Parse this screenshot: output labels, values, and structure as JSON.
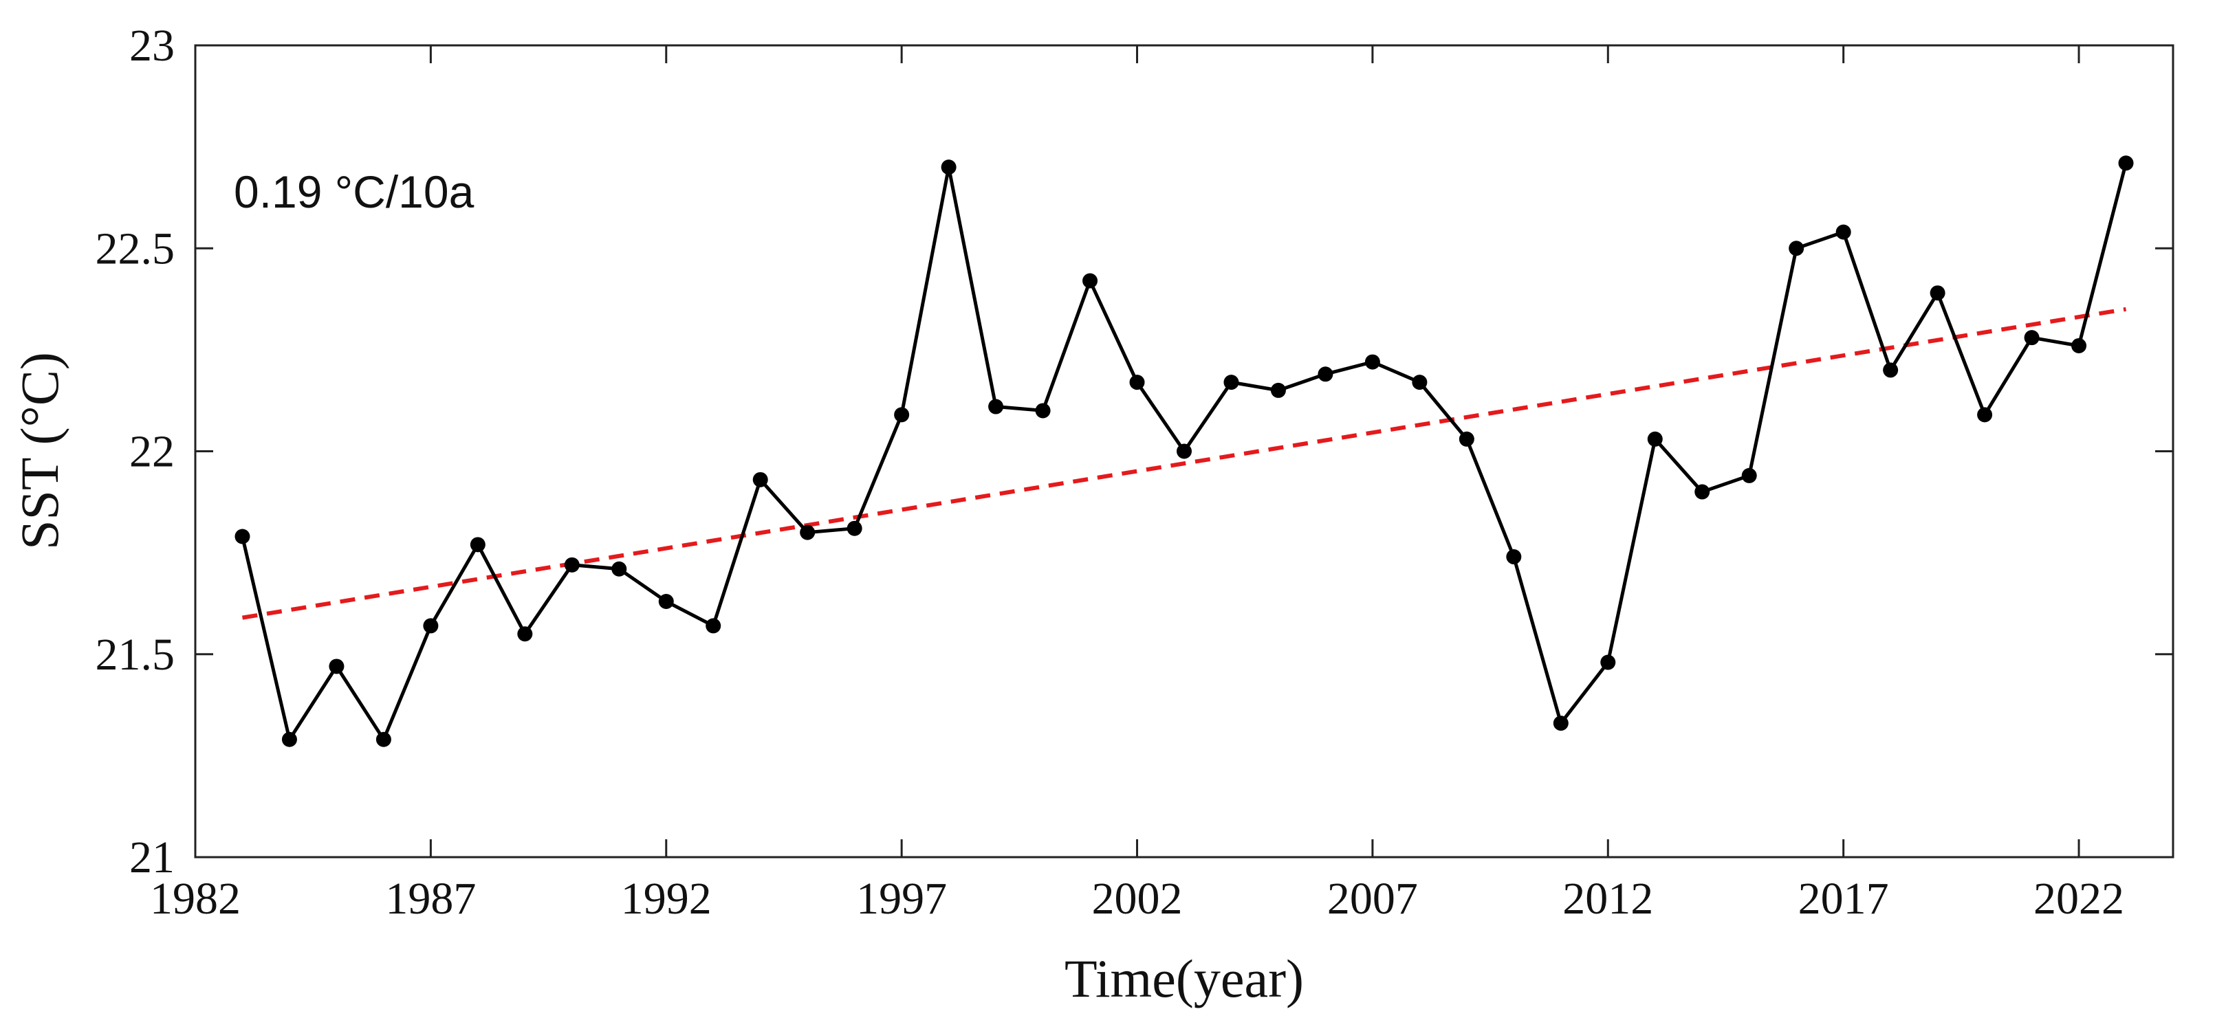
{
  "chart_data": {
    "type": "line",
    "xlabel": "Time(year)",
    "ylabel": "SST (°C)",
    "xlim": [
      1982,
      2024
    ],
    "ylim": [
      21,
      23
    ],
    "xticks": [
      1982,
      1987,
      1992,
      1997,
      2002,
      2007,
      2012,
      2017,
      2022
    ],
    "yticks": [
      21,
      21.5,
      22,
      22.5,
      23
    ],
    "annotation": "0.19 °C/10a",
    "grid": false,
    "series": [
      {
        "style": "solid-line-with-markers",
        "color": "#000000",
        "x": [
          1983,
          1984,
          1985,
          1986,
          1987,
          1988,
          1989,
          1990,
          1991,
          1992,
          1993,
          1994,
          1995,
          1996,
          1997,
          1998,
          1999,
          2000,
          2001,
          2002,
          2003,
          2004,
          2005,
          2006,
          2007,
          2008,
          2009,
          2010,
          2011,
          2012,
          2013,
          2014,
          2015,
          2016,
          2017,
          2018,
          2019,
          2020,
          2021,
          2022,
          2023
        ],
        "y": [
          21.79,
          21.29,
          21.47,
          21.29,
          21.57,
          21.77,
          21.55,
          21.72,
          21.71,
          21.63,
          21.57,
          21.93,
          21.8,
          21.81,
          22.09,
          22.7,
          22.11,
          22.1,
          22.42,
          22.17,
          22,
          22.17,
          22.15,
          22.19,
          22.22,
          22.17,
          22.03,
          21.74,
          21.33,
          21.48,
          22.03,
          21.9,
          21.94,
          22.5,
          22.54,
          22.2,
          22.39,
          22.09,
          22.28,
          22.26,
          22.71
        ]
      },
      {
        "style": "dashed-trend",
        "color": "#e41a1c",
        "x": [
          1983,
          2023
        ],
        "y": [
          21.59,
          22.35
        ]
      }
    ]
  }
}
